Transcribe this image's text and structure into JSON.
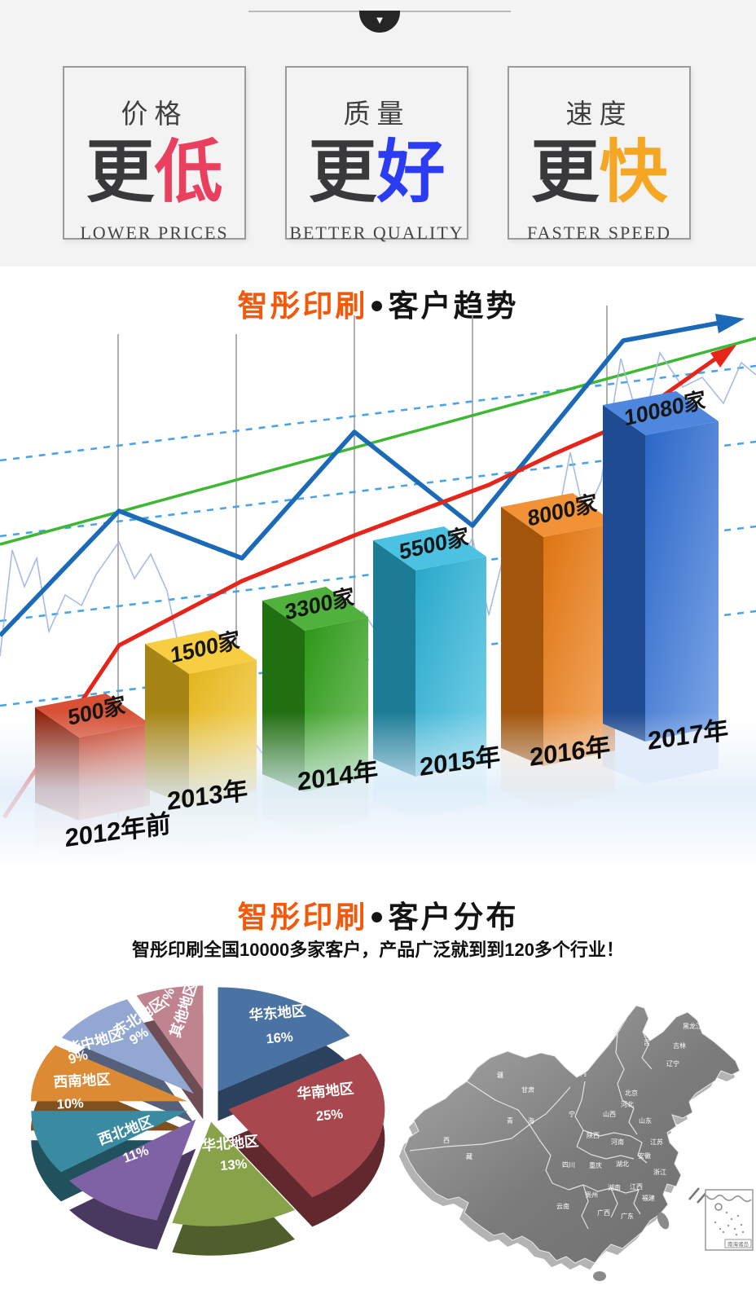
{
  "top_banner": {
    "scroll_icon": "▼",
    "features": [
      {
        "title": "价格",
        "big_prefix": "更",
        "big_accent": "低",
        "accent_color": "#e8405e",
        "subtitle": "LOWER PRICES"
      },
      {
        "title": "质量",
        "big_prefix": "更",
        "big_accent": "好",
        "accent_color": "#2b3cf2",
        "subtitle": "BETTER QUALITY"
      },
      {
        "title": "速度",
        "big_prefix": "更",
        "big_accent": "快",
        "accent_color": "#f5a623",
        "subtitle": "FASTER SPEED"
      }
    ]
  },
  "trend_section": {
    "brand": "智彤印刷",
    "bullet": "●",
    "title": "客户趋势"
  },
  "dist_section": {
    "brand": "智彤印刷",
    "bullet": "●",
    "title": "客户分布",
    "subtitle": "智彤印刷全国10000多家客户，产品广泛就到到120多个行业！"
  },
  "chart_data": [
    {
      "type": "bar",
      "title": "智彤印刷●客户趋势",
      "categories": [
        "2012年前",
        "2013年",
        "2014年",
        "2015年",
        "2016年",
        "2017年"
      ],
      "values": [
        500,
        1500,
        3300,
        5500,
        8000,
        10080
      ],
      "value_labels": [
        "500家",
        "1500家",
        "3300家",
        "5500家",
        "8000家",
        "10080家"
      ],
      "unit": "家",
      "bar_colors": [
        "#d03010",
        "#f6c41d",
        "#2fa317",
        "#29b6dc",
        "#f07d10",
        "#2e6fd8"
      ],
      "overlay_lines": [
        {
          "name": "blue-trend-arrow",
          "color": "#1a6ab8",
          "style": "solid"
        },
        {
          "name": "red-trend-arrow",
          "color": "#e6251a",
          "style": "solid"
        },
        {
          "name": "green-trend",
          "color": "#3cb832",
          "style": "solid"
        },
        {
          "name": "fluctuation-line",
          "color": "#9db4e4",
          "style": "solid"
        },
        {
          "name": "channel-lines",
          "color": "#4aa3e8",
          "style": "dashed",
          "count": 4
        }
      ],
      "gridlines": "vertical",
      "legend": "none",
      "xlabel": "",
      "ylabel": ""
    },
    {
      "type": "pie",
      "title": "智彤印刷●客户分布",
      "labels": [
        "华东地区",
        "华南地区",
        "华北地区",
        "西北地区",
        "西南地区",
        "华中地区",
        "东北地区",
        "其他地区"
      ],
      "values": [
        16,
        25,
        13,
        11,
        10,
        9,
        9,
        7
      ],
      "percent_labels": [
        "16%",
        "25%",
        "13%",
        "11%",
        "10%",
        "9%",
        "9%",
        "7%"
      ],
      "colors": [
        "#4a72a2",
        "#a8474e",
        "#88a24a",
        "#7e62a4",
        "#3a8ba2",
        "#dc8a34",
        "#92a8d2",
        "#c08490"
      ],
      "style": "3d-exploded",
      "legend": "none"
    }
  ],
  "map": {
    "provinces": [
      "黑龙江",
      "吉林",
      "吉",
      "辽宁",
      "内",
      "甘肃",
      "宁",
      "青",
      "海",
      "新",
      "疆",
      "西",
      "藏",
      "山西",
      "河北",
      "北京",
      "山东",
      "陕西",
      "河南",
      "江苏",
      "安徽",
      "四川",
      "重庆",
      "湖北",
      "湖南",
      "江西",
      "浙江",
      "福建",
      "贵州",
      "云南",
      "广西",
      "广东"
    ],
    "inset_label": "南海诸岛"
  }
}
